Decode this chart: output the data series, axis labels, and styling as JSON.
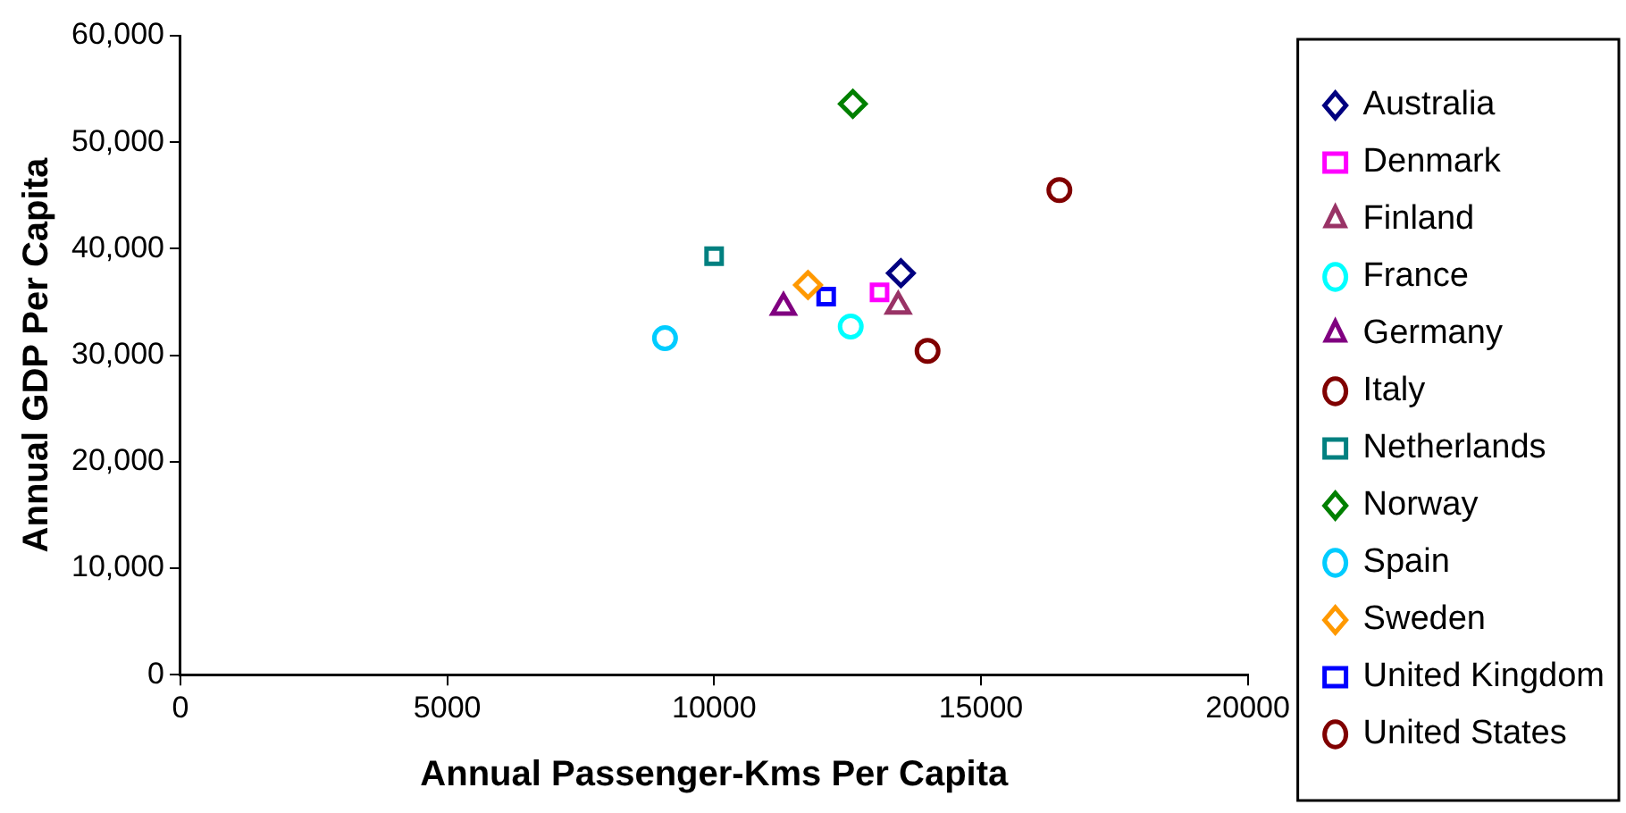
{
  "chart_data": {
    "type": "scatter",
    "xlabel": "Annual Passenger-Kms Per Capita",
    "ylabel": "Annual GDP Per Capita",
    "xlim": [
      0,
      20000
    ],
    "xticks": [
      0,
      5000,
      10000,
      15000,
      20000
    ],
    "ylim": [
      0,
      60000
    ],
    "yticks": [
      {
        "value": 0,
        "label": "0"
      },
      {
        "value": 10000,
        "label": "10,000"
      },
      {
        "value": 20000,
        "label": "20,000"
      },
      {
        "value": 30000,
        "label": "30,000"
      },
      {
        "value": 40000,
        "label": "40,000"
      },
      {
        "value": 50000,
        "label": "50,000"
      },
      {
        "value": 60000,
        "label": "60,000"
      }
    ],
    "grid": false,
    "legend": "right",
    "series": [
      {
        "name": "Australia",
        "color": "#000080",
        "marker": "diamond",
        "x": [
          13500
        ],
        "values": [
          37700
        ]
      },
      {
        "name": "Denmark",
        "color": "#ff00ff",
        "marker": "square",
        "x": [
          13100
        ],
        "values": [
          35900
        ]
      },
      {
        "name": "Finland",
        "color": "#993366",
        "marker": "triangle",
        "x": [
          13450
        ],
        "values": [
          34600
        ]
      },
      {
        "name": "France",
        "color": "#00ffff",
        "marker": "circle",
        "x": [
          12560
        ],
        "values": [
          32700
        ]
      },
      {
        "name": "Germany",
        "color": "#800080",
        "marker": "triangle",
        "x": [
          11300
        ],
        "values": [
          34500
        ]
      },
      {
        "name": "Italy",
        "color": "#800000",
        "marker": "circle",
        "x": [
          14000
        ],
        "values": [
          30400
        ]
      },
      {
        "name": "Netherlands",
        "color": "#008080",
        "marker": "square",
        "x": [
          10000
        ],
        "values": [
          39300
        ]
      },
      {
        "name": "Norway",
        "color": "#008000",
        "marker": "diamond",
        "x": [
          12600
        ],
        "values": [
          53600
        ]
      },
      {
        "name": "Spain",
        "color": "#00ccff",
        "marker": "circle",
        "x": [
          9080
        ],
        "values": [
          31600
        ]
      },
      {
        "name": "Sweden",
        "color": "#ff9900",
        "marker": "diamond",
        "x": [
          11760
        ],
        "values": [
          36600
        ]
      },
      {
        "name": "United Kingdom",
        "color": "#0000ff",
        "marker": "square",
        "x": [
          12100
        ],
        "values": [
          35500
        ]
      },
      {
        "name": "United States",
        "color": "#800000",
        "marker": "circle",
        "x": [
          16470
        ],
        "values": [
          45500
        ]
      }
    ]
  }
}
